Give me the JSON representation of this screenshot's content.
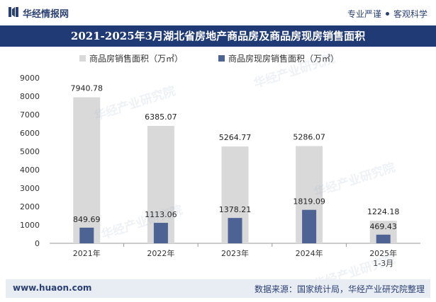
{
  "header": {
    "brand": "华经情报网",
    "tagline_left": "专业严谨",
    "tagline_right": "客观科学"
  },
  "chart_data": {
    "type": "bar",
    "title": "2021-2025年3月湖北省房地产商品房及商品房现房销售面积",
    "categories": [
      "2021年",
      "2022年",
      "2023年",
      "2024年",
      "2025年\n1-3月"
    ],
    "series": [
      {
        "name": "商品房销售面积（万㎡）",
        "values": [
          7940.78,
          6385.07,
          5264.77,
          5286.07,
          1224.18
        ],
        "color": "#d9d9d9"
      },
      {
        "name": "商品房现房销售面积（万㎡）",
        "values": [
          849.69,
          1113.06,
          1378.21,
          1819.09,
          469.43
        ],
        "color": "#4c6394"
      }
    ],
    "value_labels": [
      [
        "7940.78",
        "6385.07",
        "5264.77",
        "5286.07",
        "1224.18"
      ],
      [
        "849.69",
        "1113.06",
        "1378.21",
        "1819.09",
        "469.43"
      ]
    ],
    "y_ticks": [
      "0",
      "1000",
      "2000",
      "3000",
      "4000",
      "5000",
      "6000",
      "7000",
      "8000",
      "9000"
    ],
    "ylim": [
      0,
      9000
    ],
    "xlabel": "",
    "ylabel": "",
    "legend_position": "top-center"
  },
  "watermark": {
    "brand": "华经产业研究院",
    "site": "www.huaon.com"
  },
  "footer": {
    "site": "www.huaon.com",
    "source": "数据来源：国家统计局，华经产业研究院整理"
  }
}
